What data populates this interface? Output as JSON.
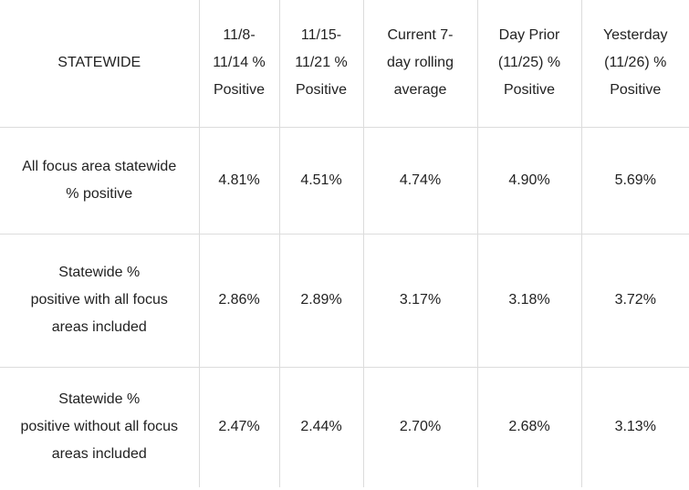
{
  "table": {
    "headers": [
      "STATEWIDE",
      "11/8-\n11/14 %\nPositive",
      "11/15-\n11/21 %\nPositive",
      "Current 7-\nday rolling\naverage",
      "Day Prior\n(11/25) %\nPositive",
      "Yesterday\n(11/26) %\nPositive"
    ],
    "rows": [
      {
        "label": "All focus area statewide\n% positive",
        "values": [
          "4.81%",
          "4.51%",
          "4.74%",
          "4.90%",
          "5.69%"
        ]
      },
      {
        "label": "Statewide %\npositive with all focus\nareas included",
        "values": [
          "2.86%",
          "2.89%",
          "3.17%",
          "3.18%",
          "3.72%"
        ]
      },
      {
        "label": "Statewide %\npositive without all focus\nareas included",
        "values": [
          "2.47%",
          "2.44%",
          "2.70%",
          "2.68%",
          "3.13%"
        ]
      }
    ]
  }
}
